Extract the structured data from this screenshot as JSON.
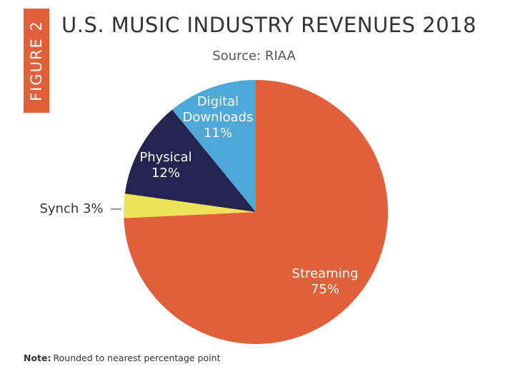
{
  "chart_data": {
    "type": "pie",
    "figure_label": "FIGURE 2",
    "title": "U.S. MUSIC INDUSTRY REVENUES 2018",
    "subtitle": "Source: RIAA",
    "note_label": "Note:",
    "note": "Rounded to nearest percentage point",
    "categories": [
      "Streaming",
      "Synch",
      "Physical",
      "Digital Downloads"
    ],
    "values": [
      75,
      3,
      12,
      11
    ],
    "value_labels": [
      "75%",
      "3%",
      "12%",
      "11%"
    ],
    "colors": [
      "#e0603a",
      "#ede35a",
      "#23244f",
      "#4ea8d8"
    ]
  }
}
